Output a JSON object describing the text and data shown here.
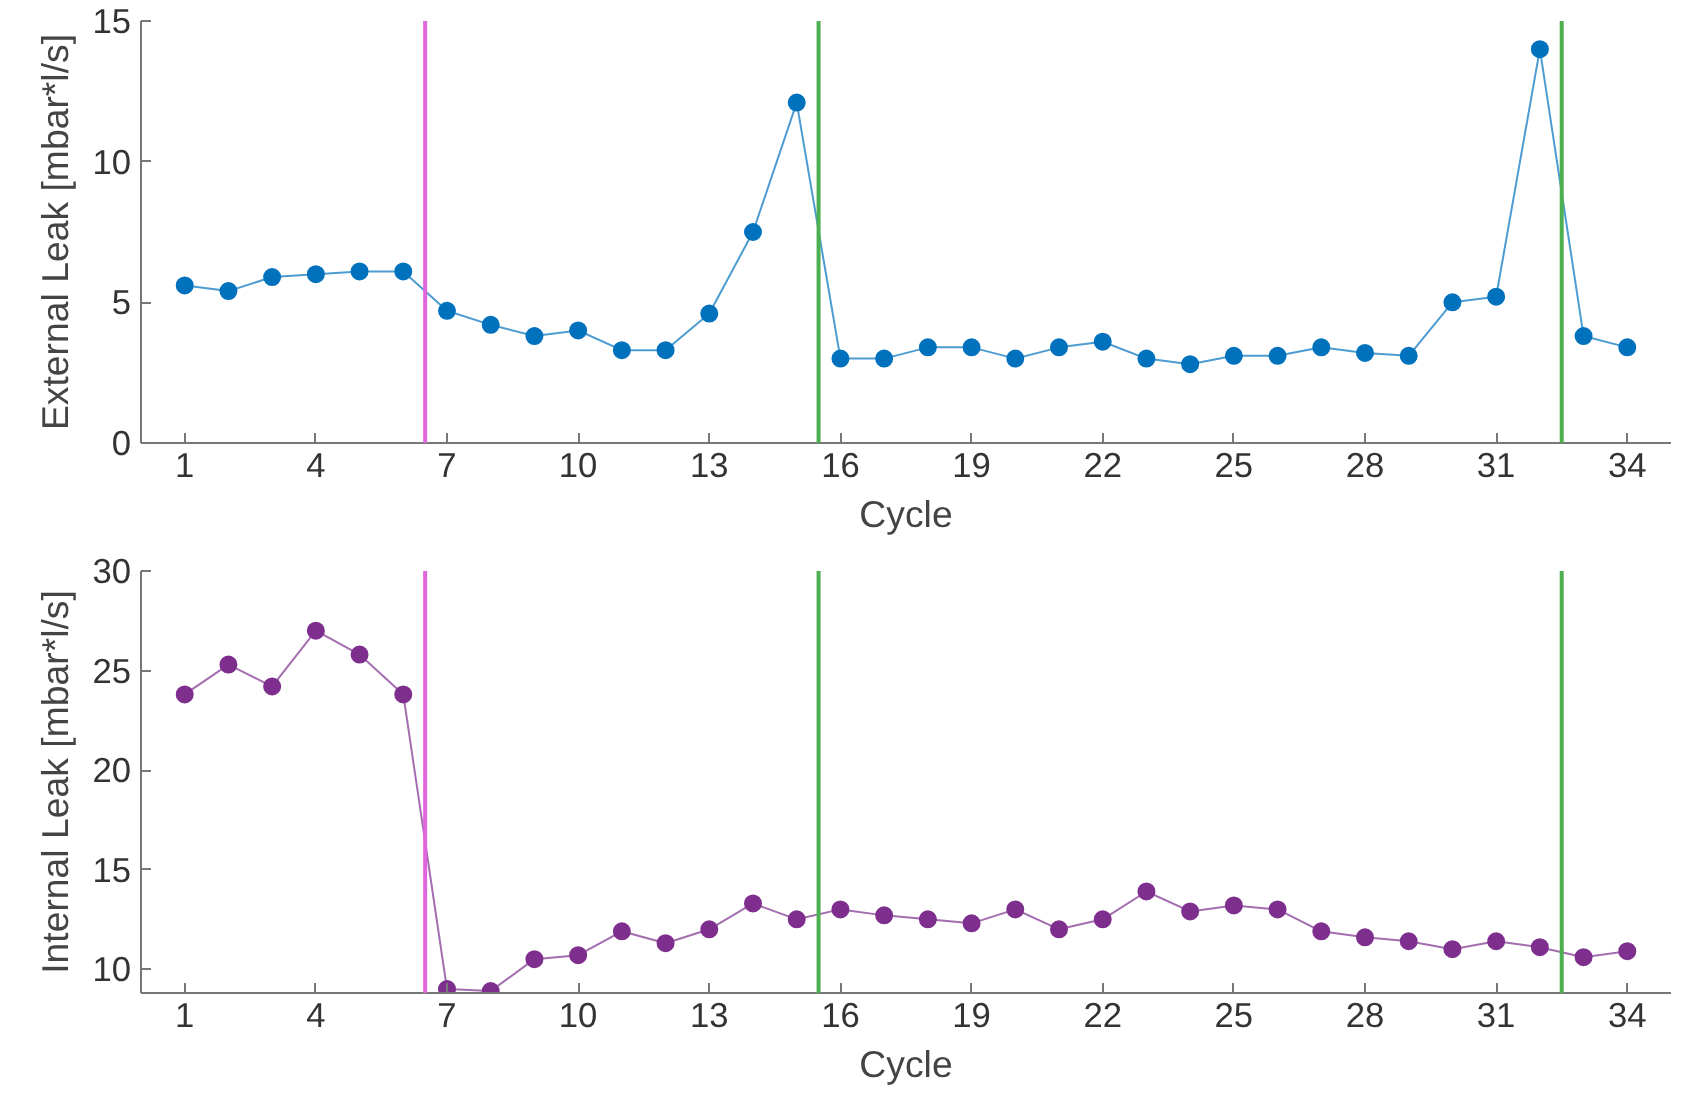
{
  "chart_data": [
    {
      "type": "line",
      "xlabel": "Cycle",
      "ylabel": "External Leak [mbar*l/s]",
      "marker": "circle",
      "grid": false,
      "x": [
        1,
        2,
        3,
        4,
        5,
        6,
        7,
        8,
        9,
        10,
        11,
        12,
        13,
        14,
        15,
        16,
        17,
        18,
        19,
        20,
        21,
        22,
        23,
        24,
        25,
        26,
        27,
        28,
        29,
        30,
        31,
        32,
        33,
        34
      ],
      "series": [
        {
          "color": "#0072bd",
          "values": [
            5.6,
            5.4,
            5.9,
            6.0,
            6.1,
            6.1,
            4.7,
            4.2,
            3.8,
            4.0,
            3.3,
            3.3,
            4.6,
            7.5,
            12.1,
            3.0,
            3.0,
            3.4,
            3.4,
            3.0,
            3.4,
            3.6,
            3.0,
            2.8,
            3.1,
            3.1,
            3.4,
            3.2,
            3.1,
            5.0,
            5.2,
            14.0,
            3.8,
            3.4
          ]
        }
      ],
      "xlim": [
        0,
        35
      ],
      "xticks": [
        1,
        4,
        7,
        10,
        13,
        16,
        19,
        22,
        25,
        28,
        31,
        34
      ],
      "ylim": [
        0,
        15
      ],
      "yticks": [
        0,
        5,
        10,
        15
      ],
      "ref_lines": [
        {
          "axis": "x",
          "value": 6.5,
          "color": "#e066e0"
        },
        {
          "axis": "x",
          "value": 15.5,
          "color": "#4caf50"
        },
        {
          "axis": "x",
          "value": 32.5,
          "color": "#4caf50"
        }
      ]
    },
    {
      "type": "line",
      "xlabel": "Cycle",
      "ylabel": "Internal Leak [mbar*l/s]",
      "marker": "circle",
      "grid": false,
      "x": [
        1,
        2,
        3,
        4,
        5,
        6,
        7,
        8,
        9,
        10,
        11,
        12,
        13,
        14,
        15,
        16,
        17,
        18,
        19,
        20,
        21,
        22,
        23,
        24,
        25,
        26,
        27,
        28,
        29,
        30,
        31,
        32,
        33,
        34
      ],
      "series": [
        {
          "color": "#7e2f8e",
          "values": [
            23.8,
            25.3,
            24.2,
            27.0,
            25.8,
            23.8,
            9.0,
            8.9,
            10.5,
            10.7,
            11.9,
            11.3,
            12.0,
            13.3,
            12.5,
            13.0,
            12.7,
            12.5,
            12.3,
            13.0,
            12.0,
            12.5,
            13.9,
            12.9,
            13.2,
            13.0,
            11.9,
            11.6,
            11.4,
            11.0,
            11.4,
            11.1,
            10.6,
            10.9
          ]
        }
      ],
      "xlim": [
        0,
        35
      ],
      "xticks": [
        1,
        4,
        7,
        10,
        13,
        16,
        19,
        22,
        25,
        28,
        31,
        34
      ],
      "ylim": [
        8.8,
        30
      ],
      "yticks": [
        10,
        15,
        20,
        25,
        30
      ],
      "ref_lines": [
        {
          "axis": "x",
          "value": 6.5,
          "color": "#e066e0"
        },
        {
          "axis": "x",
          "value": 15.5,
          "color": "#4caf50"
        },
        {
          "axis": "x",
          "value": 32.5,
          "color": "#4caf50"
        }
      ]
    }
  ]
}
